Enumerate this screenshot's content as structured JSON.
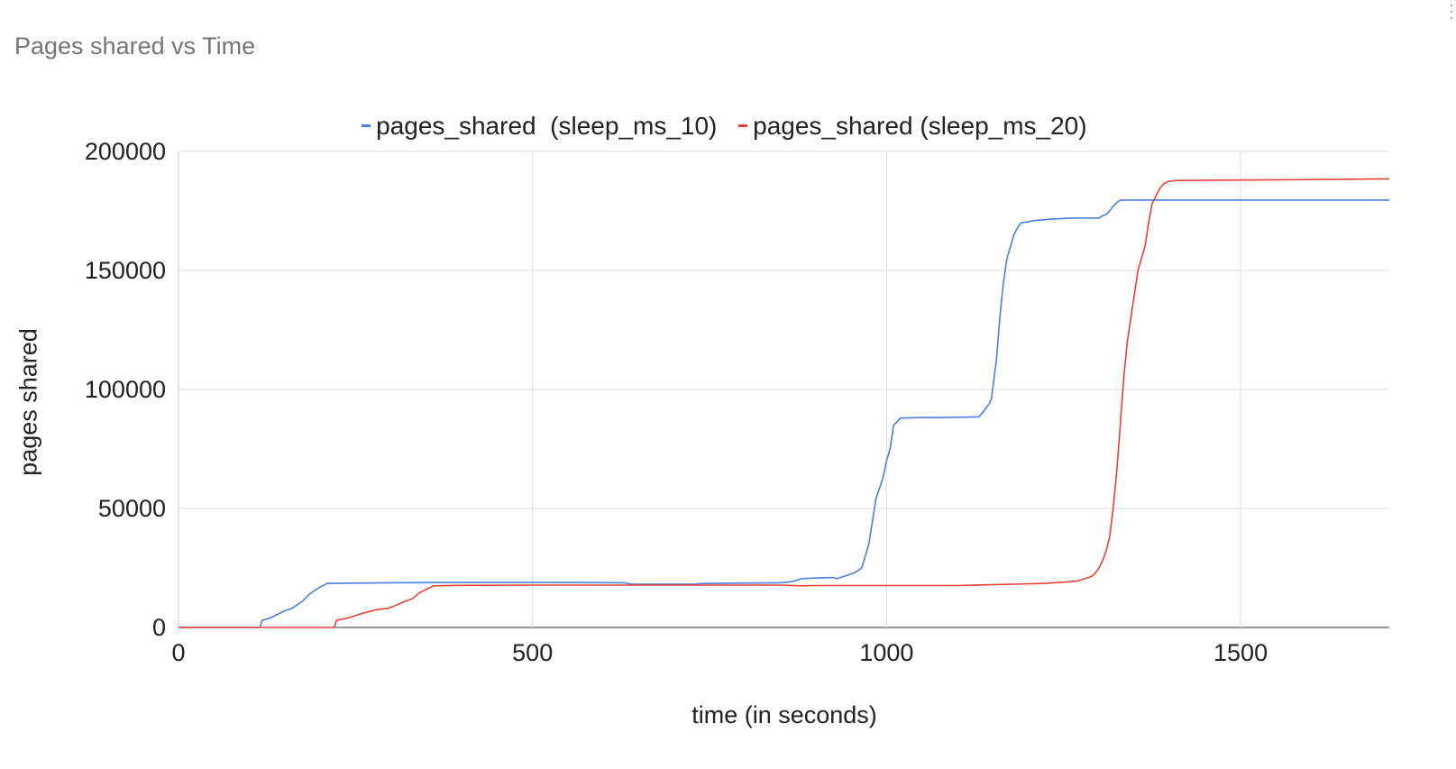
{
  "chart_data": {
    "type": "line",
    "title": "Pages shared vs Time",
    "xlabel": "time (in seconds)",
    "ylabel": "pages shared",
    "xlim": [
      0,
      1710
    ],
    "ylim": [
      0,
      200000
    ],
    "xticks": [
      0,
      500,
      1000,
      1500
    ],
    "yticks": [
      0,
      50000,
      100000,
      150000,
      200000
    ],
    "grid": true,
    "legend_position": "top",
    "series": [
      {
        "name": "pages_shared  (sleep_ms_10)",
        "color": "#4a7fdf",
        "x": [
          0,
          115,
          118,
          130,
          150,
          160,
          175,
          185,
          200,
          210,
          240,
          300,
          400,
          500,
          630,
          640,
          730,
          740,
          850,
          860,
          870,
          880,
          900,
          925,
          930,
          940,
          950,
          955,
          965,
          975,
          985,
          995,
          1000,
          1005,
          1010,
          1020,
          1050,
          1080,
          1130,
          1135,
          1140,
          1145,
          1148,
          1155,
          1160,
          1165,
          1170,
          1175,
          1180,
          1185,
          1190,
          1200,
          1210,
          1230,
          1260,
          1270,
          1300,
          1305,
          1310,
          1315,
          1320,
          1325,
          1330,
          1335,
          1350,
          1500,
          1710
        ],
        "y": [
          0,
          0,
          3000,
          4000,
          7000,
          8000,
          11000,
          14000,
          17000,
          18500,
          18600,
          18800,
          18900,
          18900,
          18800,
          18200,
          18200,
          18500,
          18800,
          19000,
          19500,
          20500,
          20800,
          21000,
          20500,
          21500,
          22500,
          23000,
          25000,
          35000,
          54000,
          63000,
          70000,
          75000,
          85000,
          88000,
          88200,
          88200,
          88500,
          90000,
          92000,
          94000,
          96000,
          112000,
          130000,
          145000,
          155000,
          160000,
          165000,
          168000,
          170000,
          170500,
          171000,
          171500,
          172000,
          172000,
          172000,
          173000,
          173500,
          175000,
          177000,
          178500,
          179500,
          179600,
          179600,
          179600,
          179600
        ]
      },
      {
        "name": "pages_shared (sleep_ms_20)",
        "color": "#e34234",
        "x": [
          0,
          220,
          223,
          240,
          260,
          280,
          295,
          305,
          320,
          330,
          340,
          350,
          360,
          400,
          500,
          600,
          850,
          880,
          900,
          1000,
          1100,
          1140,
          1180,
          1220,
          1250,
          1270,
          1280,
          1290,
          1295,
          1300,
          1305,
          1310,
          1315,
          1320,
          1325,
          1330,
          1335,
          1340,
          1345,
          1350,
          1355,
          1360,
          1365,
          1370,
          1375,
          1380,
          1385,
          1390,
          1395,
          1400,
          1405,
          1410,
          1415,
          1450,
          1600,
          1710
        ],
        "y": [
          0,
          0,
          3000,
          4000,
          6000,
          7500,
          8000,
          9000,
          11000,
          12000,
          14500,
          16000,
          17500,
          17700,
          17800,
          17800,
          17800,
          17500,
          17600,
          17600,
          17600,
          17900,
          18200,
          18500,
          19000,
          19500,
          20500,
          21500,
          23000,
          25000,
          28000,
          32000,
          38000,
          50000,
          65000,
          85000,
          105000,
          120000,
          130000,
          140000,
          150000,
          155000,
          160000,
          170000,
          178000,
          181000,
          184000,
          186000,
          187000,
          187500,
          187700,
          187800,
          187800,
          187900,
          188200,
          188500
        ]
      }
    ]
  },
  "legend": {
    "item1": "pages_shared  (sleep_ms_10)",
    "item2": "pages_shared (sleep_ms_20)"
  },
  "menu_icon": "more-vert-icon"
}
